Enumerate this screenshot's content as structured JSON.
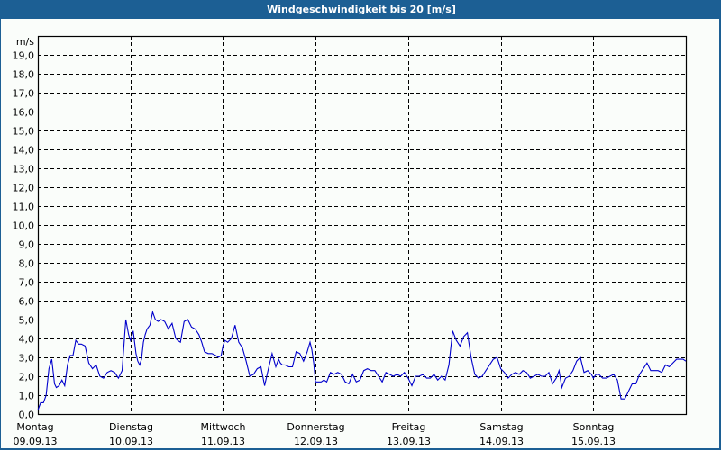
{
  "window": {
    "title": "Windgeschwindigkeit bis 20 [m/s]",
    "title_bg": "#1c5f94",
    "bg": "#fafdfa"
  },
  "chart_data": {
    "type": "line",
    "title": "Windgeschwindigkeit bis 20 [m/s]",
    "xlabel": "",
    "ylabel": "m/s",
    "ylim": [
      0,
      20
    ],
    "y_ticks": [
      "0,0",
      "1,0",
      "2,0",
      "3,0",
      "4,0",
      "5,0",
      "6,0",
      "7,0",
      "8,0",
      "9,0",
      "10,0",
      "11,0",
      "12,0",
      "13,0",
      "14,0",
      "15,0",
      "16,0",
      "17,0",
      "18,0",
      "19,0"
    ],
    "x_days": [
      {
        "day": "Montag",
        "date": "09.09.13"
      },
      {
        "day": "Dienstag",
        "date": "10.09.13"
      },
      {
        "day": "Mittwoch",
        "date": "11.09.13"
      },
      {
        "day": "Donnerstag",
        "date": "12.09.13"
      },
      {
        "day": "Freitag",
        "date": "13.09.13"
      },
      {
        "day": "Samstag",
        "date": "14.09.13"
      },
      {
        "day": "Sonntag",
        "date": "15.09.13"
      }
    ],
    "grid": true,
    "line_color": "#0000cc",
    "series": [
      {
        "name": "Windgeschwindigkeit",
        "x_days": [
          0.0,
          0.03,
          0.06,
          0.09,
          0.12,
          0.15,
          0.18,
          0.2,
          0.23,
          0.26,
          0.29,
          0.32,
          0.35,
          0.38,
          0.41,
          0.44,
          0.47,
          0.51,
          0.55,
          0.59,
          0.63,
          0.67,
          0.71,
          0.75,
          0.79,
          0.83,
          0.87,
          0.91,
          0.95,
          0.98,
          1.0,
          1.03,
          1.06,
          1.08,
          1.1,
          1.12,
          1.14,
          1.16,
          1.18,
          1.21,
          1.24,
          1.27,
          1.3,
          1.33,
          1.37,
          1.41,
          1.45,
          1.49,
          1.51,
          1.54,
          1.58,
          1.62,
          1.66,
          1.7,
          1.74,
          1.77,
          1.8,
          1.84,
          1.88,
          1.92,
          1.95,
          1.98,
          2.0,
          2.02,
          2.05,
          2.09,
          2.13,
          2.17,
          2.21,
          2.25,
          2.29,
          2.33,
          2.37,
          2.41,
          2.45,
          2.49,
          2.53,
          2.57,
          2.6,
          2.62,
          2.64,
          2.67,
          2.71,
          2.75,
          2.79,
          2.83,
          2.87,
          2.91,
          2.94,
          2.96,
          2.98,
          3.0,
          3.03,
          3.06,
          3.09,
          3.12,
          3.16,
          3.2,
          3.24,
          3.28,
          3.32,
          3.36,
          3.4,
          3.44,
          3.48,
          3.52,
          3.56,
          3.6,
          3.64,
          3.68,
          3.72,
          3.76,
          3.8,
          3.84,
          3.88,
          3.92,
          3.96,
          4.0,
          4.04,
          4.08,
          4.12,
          4.16,
          4.2,
          4.24,
          4.28,
          4.32,
          4.36,
          4.4,
          4.44,
          4.48,
          4.52,
          4.56,
          4.6,
          4.64,
          4.68,
          4.72,
          4.76,
          4.8,
          4.84,
          4.88,
          4.92,
          4.96,
          5.0,
          5.04,
          5.08,
          5.12,
          5.16,
          5.2,
          5.24,
          5.28,
          5.32,
          5.36,
          5.4,
          5.44,
          5.48,
          5.52,
          5.56,
          5.6,
          5.63,
          5.66,
          5.7,
          5.74,
          5.78,
          5.82,
          5.86,
          5.9,
          5.94,
          5.98,
          6.0,
          6.03,
          6.06,
          6.1,
          6.14,
          6.18,
          6.22,
          6.26,
          6.3,
          6.34,
          6.38,
          6.42,
          6.46,
          6.5,
          6.54,
          6.58,
          6.62,
          6.66,
          6.7,
          6.74,
          6.78,
          6.82,
          6.86,
          6.9,
          6.94,
          6.97,
          7.0
        ],
        "values": [
          0.2,
          0.6,
          0.6,
          1.0,
          2.4,
          2.9,
          1.6,
          1.4,
          1.5,
          1.8,
          1.5,
          2.6,
          3.1,
          3.1,
          3.9,
          3.7,
          3.7,
          3.6,
          2.7,
          2.4,
          2.6,
          2.0,
          1.9,
          2.2,
          2.3,
          2.2,
          1.9,
          2.3,
          5.0,
          4.2,
          3.9,
          4.4,
          3.2,
          2.8,
          2.6,
          2.9,
          3.8,
          4.2,
          4.5,
          4.7,
          5.4,
          5.0,
          4.9,
          5.0,
          4.9,
          4.5,
          4.8,
          4.0,
          3.9,
          3.8,
          4.9,
          5.0,
          4.6,
          4.5,
          4.2,
          3.8,
          3.3,
          3.2,
          3.2,
          3.1,
          3.0,
          3.1,
          3.6,
          3.9,
          3.8,
          4.0,
          4.7,
          3.8,
          3.5,
          2.8,
          2.0,
          2.1,
          2.4,
          2.5,
          1.5,
          2.4,
          3.2,
          2.5,
          2.9,
          2.7,
          2.6,
          2.6,
          2.5,
          2.5,
          3.3,
          3.2,
          2.8,
          3.3,
          3.8,
          3.4,
          2.7,
          1.7,
          1.7,
          1.7,
          1.8,
          1.7,
          2.2,
          2.1,
          2.2,
          2.1,
          1.7,
          1.6,
          2.1,
          1.7,
          1.8,
          2.3,
          2.4,
          2.3,
          2.3,
          2.0,
          1.7,
          2.2,
          2.1,
          2.0,
          2.1,
          2.0,
          2.2,
          1.9,
          1.5,
          2.0,
          2.0,
          2.1,
          1.9,
          1.9,
          2.1,
          1.8,
          2.0,
          1.8,
          2.6,
          4.4,
          3.9,
          3.6,
          4.1,
          4.3,
          3.0,
          2.1,
          1.9,
          2.0,
          2.3,
          2.6,
          2.9,
          3.0,
          2.4,
          2.2,
          1.9,
          2.1,
          2.2,
          2.1,
          2.3,
          2.2,
          1.9,
          2.0,
          2.1,
          2.0,
          2.0,
          2.2,
          1.6,
          1.9,
          2.3,
          1.4,
          1.9,
          2.0,
          2.3,
          2.8,
          3.0,
          2.2,
          2.3,
          2.1,
          1.9,
          2.1,
          2.1,
          1.9,
          1.9,
          2.0,
          2.1,
          1.8,
          0.8,
          0.8,
          1.2,
          1.6,
          1.6,
          2.1,
          2.4,
          2.7,
          2.3,
          2.3,
          2.3,
          2.2,
          2.6,
          2.5,
          2.7,
          2.9,
          2.9,
          2.9,
          2.8,
          3.0
        ]
      }
    ]
  }
}
